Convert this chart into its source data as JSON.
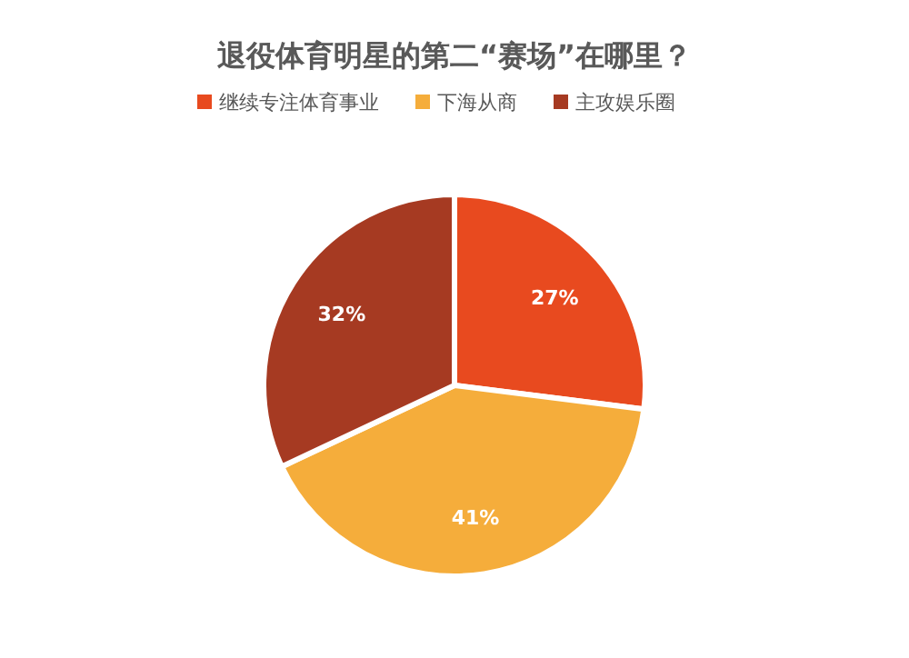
{
  "chart_data": {
    "type": "pie",
    "title": "退役体育明星的第二“赛场”在哪里？",
    "categories": [
      "继续专注体育事业",
      "下海从商",
      "主攻娱乐圈"
    ],
    "values": [
      27,
      41,
      32
    ],
    "value_labels": [
      "27%",
      "41%",
      "32%"
    ],
    "colors": [
      "#e84a1f",
      "#f5ad3b",
      "#a63a22"
    ],
    "legend": "top"
  }
}
